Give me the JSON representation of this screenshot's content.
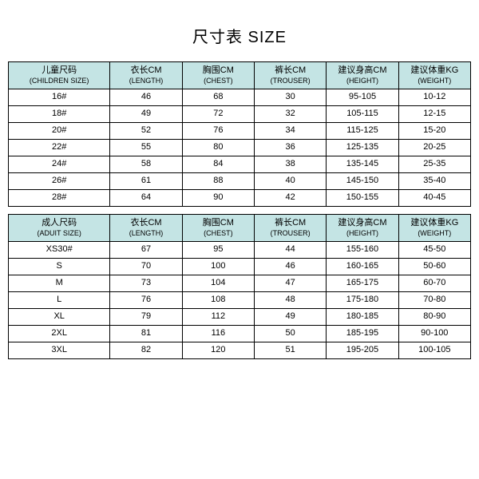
{
  "title": "尺寸表 SIZE",
  "children": {
    "headers": [
      {
        "cn": "儿童尺码",
        "en": "(CHILDREN SIZE)"
      },
      {
        "cn": "衣长CM",
        "en": "(LENGTH)"
      },
      {
        "cn": "胸围CM",
        "en": "(CHEST)"
      },
      {
        "cn": "裤长CM",
        "en": "(TROUSER)"
      },
      {
        "cn": "建议身高CM",
        "en": "(HEIGHT)"
      },
      {
        "cn": "建议体重KG",
        "en": "(WEIGHT)"
      }
    ],
    "rows": [
      [
        "16#",
        "46",
        "68",
        "30",
        "95-105",
        "10-12"
      ],
      [
        "18#",
        "49",
        "72",
        "32",
        "105-115",
        "12-15"
      ],
      [
        "20#",
        "52",
        "76",
        "34",
        "115-125",
        "15-20"
      ],
      [
        "22#",
        "55",
        "80",
        "36",
        "125-135",
        "20-25"
      ],
      [
        "24#",
        "58",
        "84",
        "38",
        "135-145",
        "25-35"
      ],
      [
        "26#",
        "61",
        "88",
        "40",
        "145-150",
        "35-40"
      ],
      [
        "28#",
        "64",
        "90",
        "42",
        "150-155",
        "40-45"
      ]
    ]
  },
  "adult": {
    "headers": [
      {
        "cn": "成人尺码",
        "en": "(ADUIT SIZE)"
      },
      {
        "cn": "衣长CM",
        "en": "(LENGTH)"
      },
      {
        "cn": "胸围CM",
        "en": "(CHEST)"
      },
      {
        "cn": "裤长CM",
        "en": "(TROUSER)"
      },
      {
        "cn": "建议身高CM",
        "en": "(HEIGHT)"
      },
      {
        "cn": "建议体重KG",
        "en": "(WEIGHT)"
      }
    ],
    "rows": [
      [
        "XS30#",
        "67",
        "95",
        "44",
        "155-160",
        "45-50"
      ],
      [
        "S",
        "70",
        "100",
        "46",
        "160-165",
        "50-60"
      ],
      [
        "M",
        "73",
        "104",
        "47",
        "165-175",
        "60-70"
      ],
      [
        "L",
        "76",
        "108",
        "48",
        "175-180",
        "70-80"
      ],
      [
        "XL",
        "79",
        "112",
        "49",
        "180-185",
        "80-90"
      ],
      [
        "2XL",
        "81",
        "116",
        "50",
        "185-195",
        "90-100"
      ],
      [
        "3XL",
        "82",
        "120",
        "51",
        "195-205",
        "100-105"
      ]
    ]
  },
  "colors": {
    "header_bg": "#c4e4e4",
    "border": "#000000",
    "text": "#000000",
    "background": "#ffffff"
  }
}
